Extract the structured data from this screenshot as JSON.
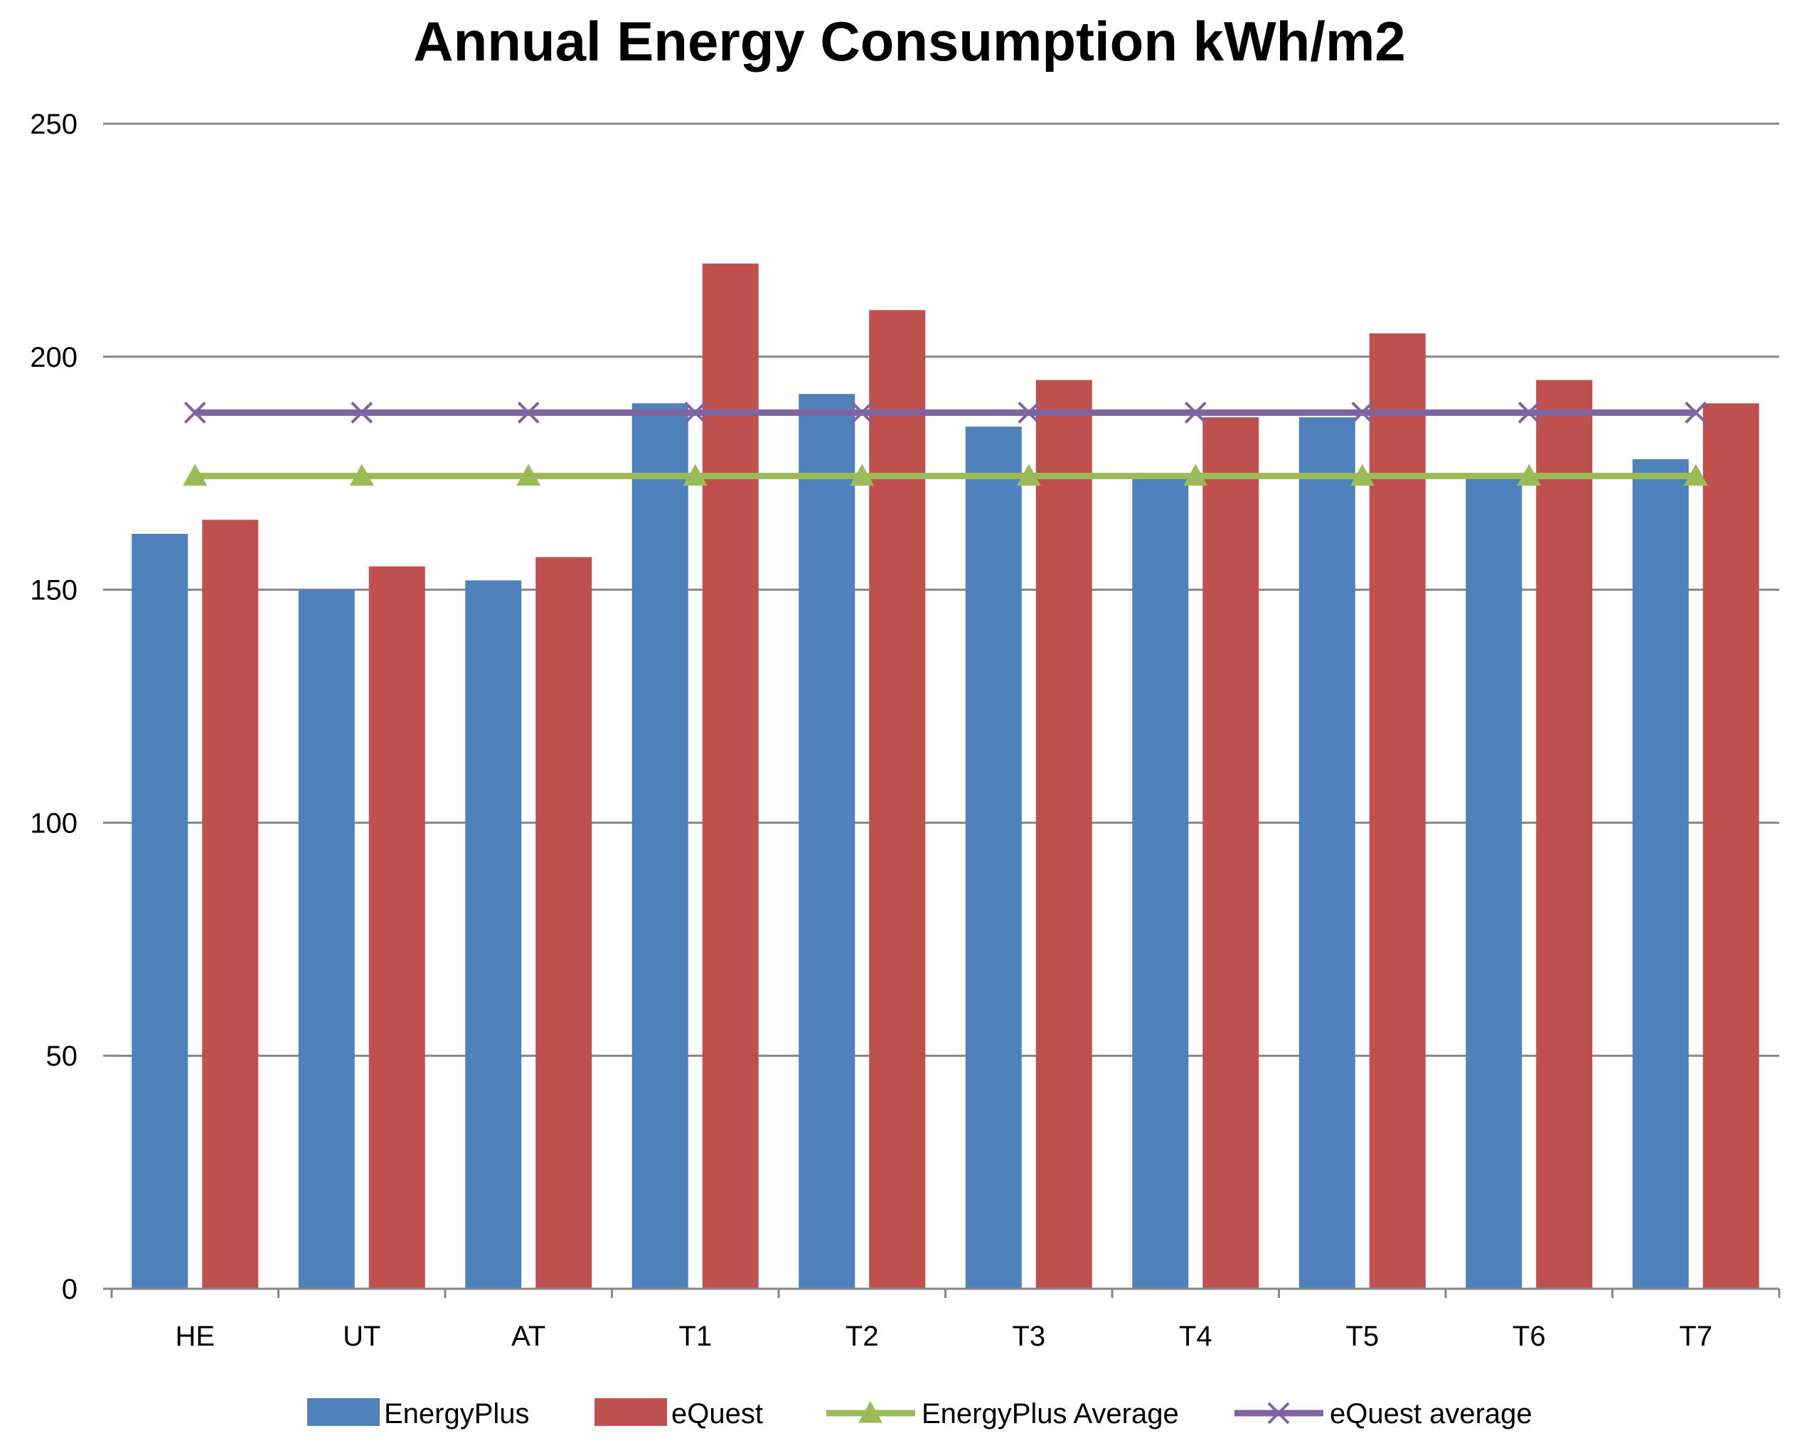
{
  "chart_data": {
    "type": "bar",
    "title": "Annual Energy Consumption kWh/m2",
    "xlabel": "",
    "ylabel": "",
    "ylim": [
      0,
      250
    ],
    "yticks": [
      0,
      50,
      100,
      150,
      200,
      250
    ],
    "grid": true,
    "legend_position": "bottom",
    "categories": [
      "HE",
      "UT",
      "AT",
      "T1",
      "T2",
      "T3",
      "T4",
      "T5",
      "T6",
      "T7"
    ],
    "series": [
      {
        "name": "EnergyPlus",
        "kind": "bar",
        "color": "#4F81BD",
        "values": [
          162,
          150,
          152,
          190,
          192,
          185,
          174,
          187,
          174,
          178
        ]
      },
      {
        "name": "eQuest",
        "kind": "bar",
        "color": "#C0504D",
        "values": [
          165,
          155,
          157,
          220,
          210,
          195,
          187,
          205,
          195,
          190
        ]
      },
      {
        "name": "EnergyPlus Average",
        "kind": "line",
        "marker": "triangle",
        "color": "#9BBB59",
        "values": [
          174.4,
          174.4,
          174.4,
          174.4,
          174.4,
          174.4,
          174.4,
          174.4,
          174.4,
          174.4
        ]
      },
      {
        "name": "eQuest average",
        "kind": "line",
        "marker": "x",
        "color": "#8064A2",
        "values": [
          188,
          188,
          188,
          188,
          188,
          188,
          188,
          188,
          188,
          188
        ]
      }
    ]
  }
}
